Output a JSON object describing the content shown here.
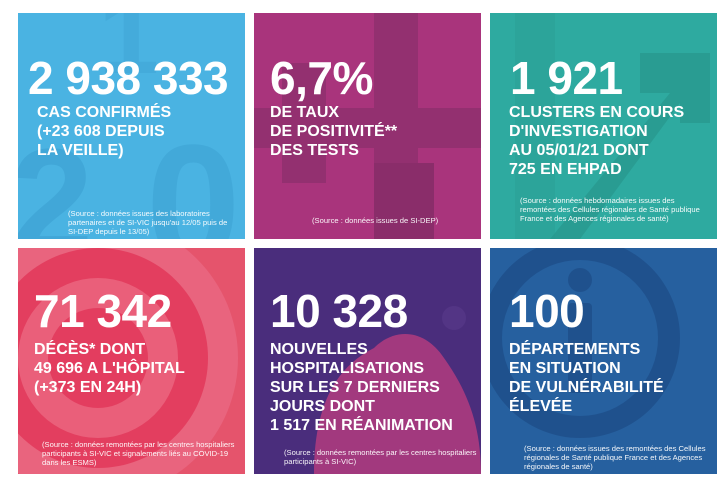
{
  "tiles": [
    {
      "value": "2 938 333",
      "label": "CAS CONFIRMÉS\n(+23 608 DEPUIS\nLA VEILLE)",
      "source": "(Source : données issues des laboratoires partenaires et de SI-VIC jusqu'au 12/05 puis de SI-DEP depuis le 13/05)",
      "color": "#4ab3e2"
    },
    {
      "value": "6,7%",
      "label": "DE TAUX\nDE POSITIVITÉ**\nDES TESTS",
      "source": "(Source : données issues de SI-DEP)",
      "color": "#a9347c"
    },
    {
      "value": "1 921",
      "label": "CLUSTERS EN COURS\nD'INVESTIGATION\nAU 05/01/21 DONT\n725 EN EHPAD",
      "source": "(Source : données hebdomadaires issues des remontées des Cellules régionales de Santé publique France et des Agences régionales de santé)",
      "color": "#2eaaa0"
    },
    {
      "value": "71 342",
      "label": "DÉCÈS* DONT\n49 696 A L'HÔPITAL\n(+373 EN 24H)",
      "source": "(Source : données remontées par les centres hospitaliers participants à SI-VIC et signalements liés au COVID-19 dans les ESMS)",
      "color": "#e5546c"
    },
    {
      "value": "10 328",
      "label": "NOUVELLES\nHOSPITALISATIONS\nSUR LES 7 DERNIERS\nJOURS DONT\n1 517 EN RÉANIMATION",
      "source": "(Source : données remontées par les centres hospitaliers participants à SI-VIC)",
      "color": "#4a2d7c"
    },
    {
      "value": "100",
      "label": "DÉPARTEMENTS\nEN SITUATION\nDE VULNÉRABILITÉ\nÉLEVÉE",
      "source": "(Source : données issues des remontées des Cellules régionales de Santé publique France et des Agences régionales de santé)",
      "color": "#26609f"
    }
  ]
}
